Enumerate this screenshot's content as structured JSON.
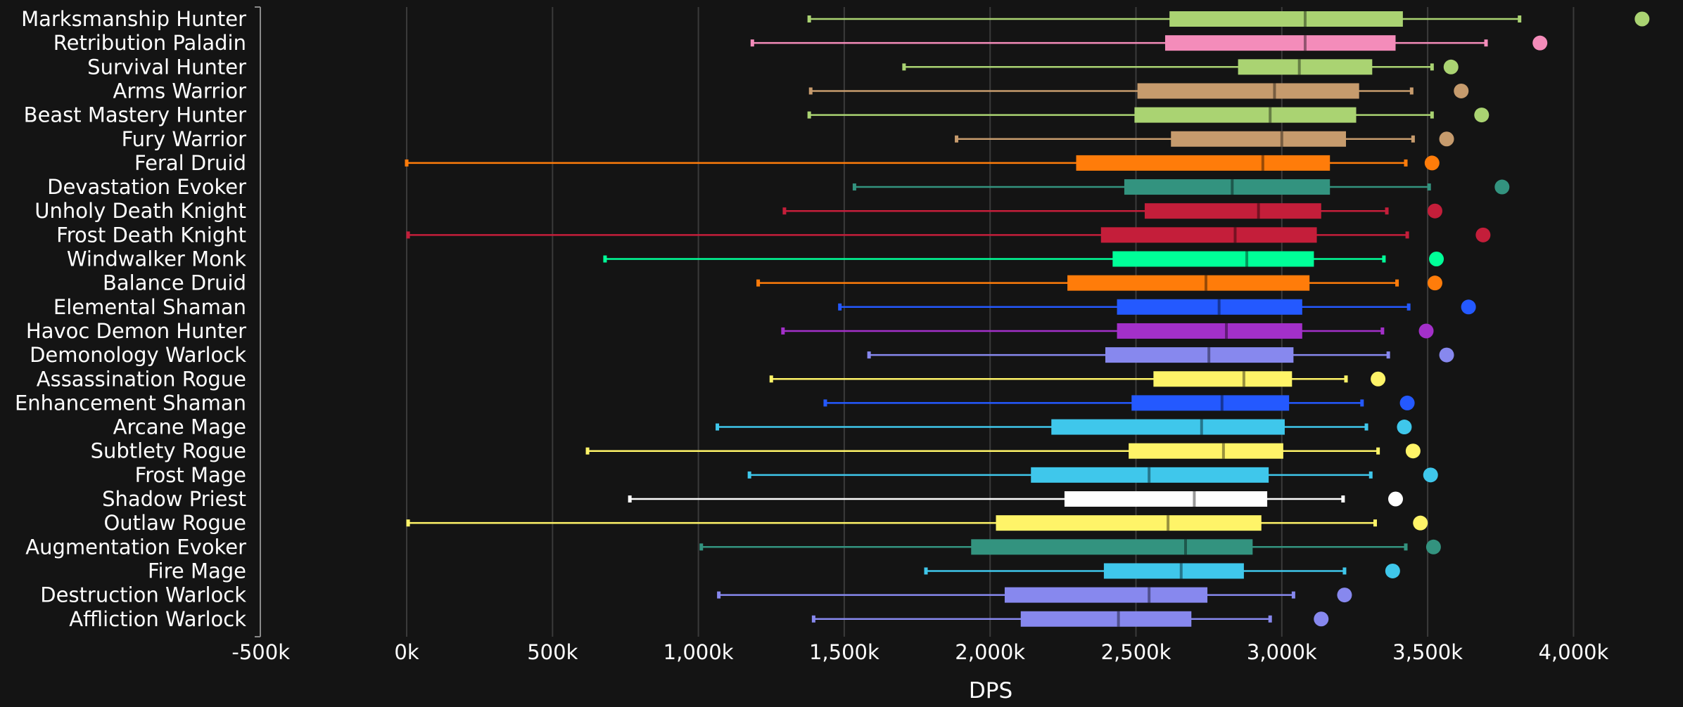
{
  "chart_data": {
    "type": "boxplot",
    "orientation": "horizontal",
    "xlabel": "DPS",
    "xlim": [
      -500000,
      4200000
    ],
    "ticks": [
      {
        "value": -500000,
        "label": "-500k"
      },
      {
        "value": 0,
        "label": "0k"
      },
      {
        "value": 500000,
        "label": "500k"
      },
      {
        "value": 1000000,
        "label": "1,000k"
      },
      {
        "value": 1500000,
        "label": "1,500k"
      },
      {
        "value": 2000000,
        "label": "2,000k"
      },
      {
        "value": 2500000,
        "label": "2,500k"
      },
      {
        "value": 3000000,
        "label": "3,000k"
      },
      {
        "value": 3500000,
        "label": "3,500k"
      },
      {
        "value": 4000000,
        "label": "4,000k"
      }
    ],
    "grid": true,
    "colors": {
      "background": "#141414",
      "grid": "#3a3a3a",
      "axis": "#8a8a8a",
      "text": "#ffffff"
    },
    "series": [
      {
        "name": "Marksmanship Hunter",
        "color": "#aad372",
        "whisker_low": 1380000,
        "q1": 2615000,
        "median": 3080000,
        "q3": 3415000,
        "whisker_high": 3815000,
        "outlier": 4235000
      },
      {
        "name": "Retribution Paladin",
        "color": "#f48cba",
        "whisker_low": 1185000,
        "q1": 2600000,
        "median": 3080000,
        "q3": 3390000,
        "whisker_high": 3700000,
        "outlier": 3885000
      },
      {
        "name": "Survival Hunter",
        "color": "#aad372",
        "whisker_low": 1705000,
        "q1": 2850000,
        "median": 3060000,
        "q3": 3310000,
        "whisker_high": 3515000,
        "outlier": 3580000
      },
      {
        "name": "Arms Warrior",
        "color": "#c69b6d",
        "whisker_low": 1385000,
        "q1": 2505000,
        "median": 2975000,
        "q3": 3265000,
        "whisker_high": 3445000,
        "outlier": 3615000
      },
      {
        "name": "Beast Mastery Hunter",
        "color": "#aad372",
        "whisker_low": 1380000,
        "q1": 2495000,
        "median": 2960000,
        "q3": 3255000,
        "whisker_high": 3515000,
        "outlier": 3685000
      },
      {
        "name": "Fury Warrior",
        "color": "#c69b6d",
        "whisker_low": 1885000,
        "q1": 2620000,
        "median": 3000000,
        "q3": 3220000,
        "whisker_high": 3450000,
        "outlier": 3565000
      },
      {
        "name": "Feral Druid",
        "color": "#ff7c0a",
        "whisker_low": 0,
        "q1": 2295000,
        "median": 2935000,
        "q3": 3165000,
        "whisker_high": 3425000,
        "outlier": 3515000
      },
      {
        "name": "Devastation Evoker",
        "color": "#33937f",
        "whisker_low": 1535000,
        "q1": 2460000,
        "median": 2830000,
        "q3": 3165000,
        "whisker_high": 3505000,
        "outlier": 3755000
      },
      {
        "name": "Unholy Death Knight",
        "color": "#c41e3a",
        "whisker_low": 1295000,
        "q1": 2530000,
        "median": 2920000,
        "q3": 3135000,
        "whisker_high": 3360000,
        "outlier": 3525000
      },
      {
        "name": "Frost Death Knight",
        "color": "#c41e3a",
        "whisker_low": 5000,
        "q1": 2380000,
        "median": 2840000,
        "q3": 3120000,
        "whisker_high": 3430000,
        "outlier": 3690000
      },
      {
        "name": "Windwalker Monk",
        "color": "#00ff98",
        "whisker_low": 680000,
        "q1": 2420000,
        "median": 2880000,
        "q3": 3110000,
        "whisker_high": 3350000,
        "outlier": 3530000
      },
      {
        "name": "Balance Druid",
        "color": "#ff7c0a",
        "whisker_low": 1205000,
        "q1": 2265000,
        "median": 2740000,
        "q3": 3095000,
        "whisker_high": 3395000,
        "outlier": 3525000
      },
      {
        "name": "Elemental Shaman",
        "color": "#2459ff",
        "whisker_low": 1485000,
        "q1": 2435000,
        "median": 2785000,
        "q3": 3070000,
        "whisker_high": 3435000,
        "outlier": 3640000
      },
      {
        "name": "Havoc Demon Hunter",
        "color": "#a330c9",
        "whisker_low": 1290000,
        "q1": 2435000,
        "median": 2810000,
        "q3": 3070000,
        "whisker_high": 3345000,
        "outlier": 3495000
      },
      {
        "name": "Demonology Warlock",
        "color": "#8788ee",
        "whisker_low": 1585000,
        "q1": 2395000,
        "median": 2750000,
        "q3": 3040000,
        "whisker_high": 3365000,
        "outlier": 3565000
      },
      {
        "name": "Assassination Rogue",
        "color": "#fff468",
        "whisker_low": 1250000,
        "q1": 2560000,
        "median": 2870000,
        "q3": 3035000,
        "whisker_high": 3220000,
        "outlier": 3330000
      },
      {
        "name": "Enhancement Shaman",
        "color": "#2459ff",
        "whisker_low": 1435000,
        "q1": 2485000,
        "median": 2795000,
        "q3": 3025000,
        "whisker_high": 3275000,
        "outlier": 3430000
      },
      {
        "name": "Arcane Mage",
        "color": "#3fc7eb",
        "whisker_low": 1065000,
        "q1": 2210000,
        "median": 2725000,
        "q3": 3010000,
        "whisker_high": 3290000,
        "outlier": 3420000
      },
      {
        "name": "Subtlety Rogue",
        "color": "#fff468",
        "whisker_low": 620000,
        "q1": 2475000,
        "median": 2800000,
        "q3": 3005000,
        "whisker_high": 3330000,
        "outlier": 3450000
      },
      {
        "name": "Frost Mage",
        "color": "#3fc7eb",
        "whisker_low": 1175000,
        "q1": 2140000,
        "median": 2545000,
        "q3": 2955000,
        "whisker_high": 3305000,
        "outlier": 3510000
      },
      {
        "name": "Shadow Priest",
        "color": "#ffffff",
        "whisker_low": 765000,
        "q1": 2255000,
        "median": 2700000,
        "q3": 2950000,
        "whisker_high": 3210000,
        "outlier": 3390000
      },
      {
        "name": "Outlaw Rogue",
        "color": "#fff468",
        "whisker_low": 5000,
        "q1": 2020000,
        "median": 2610000,
        "q3": 2930000,
        "whisker_high": 3320000,
        "outlier": 3475000
      },
      {
        "name": "Augmentation Evoker",
        "color": "#33937f",
        "whisker_low": 1010000,
        "q1": 1935000,
        "median": 2670000,
        "q3": 2900000,
        "whisker_high": 3425000,
        "outlier": 3520000
      },
      {
        "name": "Fire Mage",
        "color": "#3fc7eb",
        "whisker_low": 1780000,
        "q1": 2390000,
        "median": 2655000,
        "q3": 2870000,
        "whisker_high": 3215000,
        "outlier": 3380000
      },
      {
        "name": "Destruction Warlock",
        "color": "#8788ee",
        "whisker_low": 1070000,
        "q1": 2050000,
        "median": 2545000,
        "q3": 2745000,
        "whisker_high": 3040000,
        "outlier": 3215000
      },
      {
        "name": "Affliction Warlock",
        "color": "#8788ee",
        "whisker_low": 1395000,
        "q1": 2105000,
        "median": 2440000,
        "q3": 2690000,
        "whisker_high": 2960000,
        "outlier": 3135000
      }
    ]
  }
}
